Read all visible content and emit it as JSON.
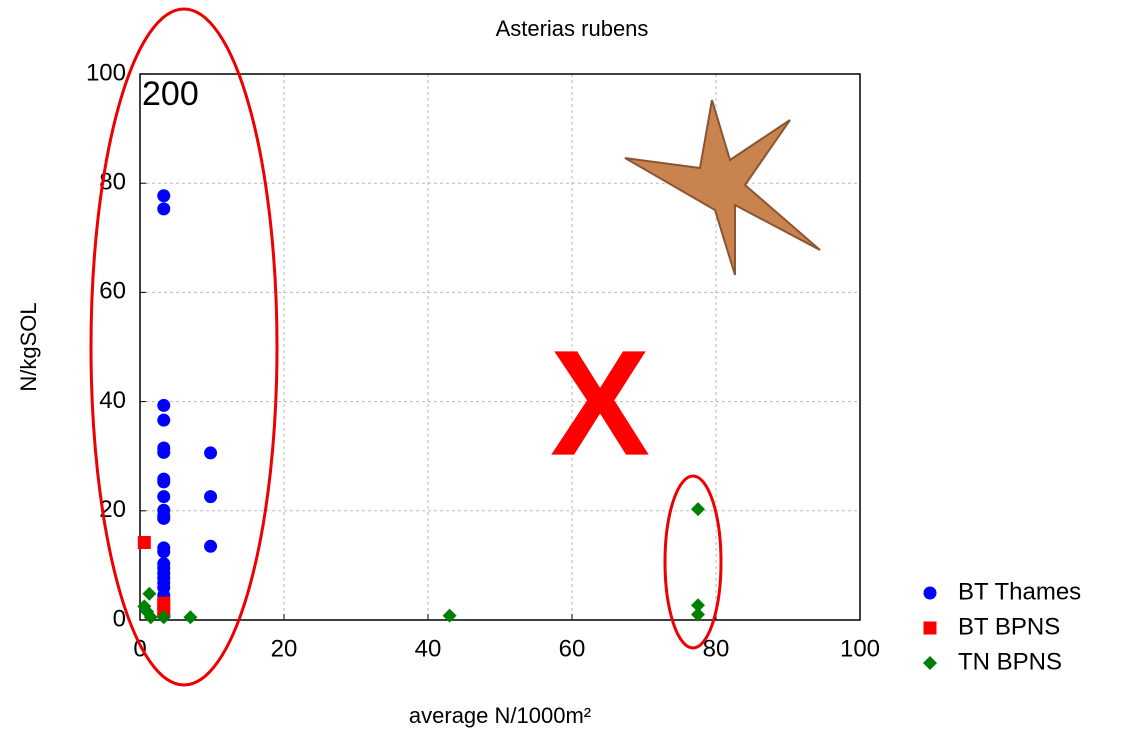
{
  "chart_data": {
    "type": "scatter",
    "title": "Asterias rubens",
    "x_label": "average N/1000m²",
    "y_label": "N/kgSOL",
    "annotations": [
      "200",
      "X"
    ],
    "xlim": [
      0,
      100
    ],
    "xticks": [
      0,
      20,
      40,
      60,
      80,
      100
    ],
    "ylim": [
      0,
      100
    ],
    "yticks": [
      0,
      20,
      40,
      60,
      80,
      100
    ],
    "grid": true,
    "legend": "right",
    "series": [
      {
        "name": "BT Thames",
        "color": "#0000ff",
        "marker": "circle",
        "x": [
          3.3,
          3.3,
          3.3,
          3.3,
          3.3,
          3.3,
          3.3,
          3.3,
          3.3,
          3.3,
          3.3,
          3.3,
          3.3,
          3.3,
          3.3,
          3.3,
          3.3,
          3.3,
          3.3,
          3.3,
          3.3,
          3.3,
          3.3,
          3.3,
          9.8,
          9.8,
          9.8
        ],
        "values": [
          77.7,
          75.3,
          39.3,
          36.6,
          31.5,
          30.7,
          25.8,
          25.3,
          22.6,
          20.1,
          19.1,
          18.6,
          13.2,
          12.5,
          10.3,
          9.5,
          8.6,
          7.7,
          6.8,
          5.9,
          4.5,
          3.6,
          2.2,
          0.9,
          30.6,
          22.6,
          13.5
        ]
      },
      {
        "name": "BT BPNS",
        "color": "#ff0000",
        "marker": "square",
        "x": [
          0.6,
          3.3,
          3.3
        ],
        "values": [
          14.2,
          3.1,
          1.8
        ]
      },
      {
        "name": "TN BPNS",
        "color": "#008000",
        "marker": "diamond",
        "x": [
          1.3,
          0.6,
          1.0,
          1.5,
          7.0,
          43.0,
          77.5,
          77.5,
          77.5,
          3.3
        ],
        "values": [
          4.8,
          2.5,
          1.5,
          0.5,
          0.5,
          0.8,
          20.3,
          2.7,
          1.0,
          0.5
        ]
      }
    ]
  }
}
